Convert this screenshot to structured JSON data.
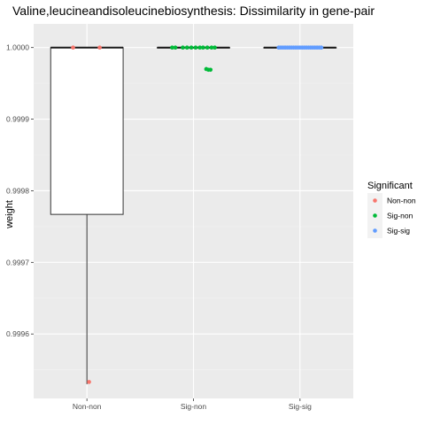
{
  "chart_data": {
    "type": "box",
    "title": "Valine,leucineandisoleucinebiosynthesis: Dissimilarity in gene-pair",
    "xlabel": "",
    "ylabel": "weight",
    "categories": [
      "Non-non",
      "Sig-non",
      "Sig-sig"
    ],
    "ylim": [
      0.99951,
      1.000033
    ],
    "yticks": [
      0.9996,
      0.9997,
      0.9998,
      0.9999,
      1.0
    ],
    "ytick_labels": [
      "0.9996",
      "0.9997",
      "0.9998",
      "0.9999",
      "1.0000"
    ],
    "grid": true,
    "legend": {
      "title": "Significant",
      "placement": "right",
      "entries": [
        {
          "label": "Non-non",
          "color": "#F8766D"
        },
        {
          "label": "Sig-non",
          "color": "#00BA38"
        },
        {
          "label": "Sig-sig",
          "color": "#619CFF"
        }
      ]
    },
    "boxes": [
      {
        "category": "Non-non",
        "lower_whisker": 0.99953,
        "q1": 0.999767,
        "median": 1.0,
        "q3": 1.0,
        "upper_whisker": 1.0
      },
      {
        "category": "Sig-non",
        "lower_whisker": 1.0,
        "q1": 1.0,
        "median": 1.0,
        "q3": 1.0,
        "upper_whisker": 1.0
      },
      {
        "category": "Sig-sig",
        "lower_whisker": 1.0,
        "q1": 1.0,
        "median": 1.0,
        "q3": 1.0,
        "upper_whisker": 1.0
      }
    ],
    "points": [
      {
        "category": "Non-non",
        "jitter": -0.13,
        "y": 1.0
      },
      {
        "category": "Non-non",
        "jitter": 0.12,
        "y": 1.0
      },
      {
        "category": "Non-non",
        "jitter": 0.02,
        "y": 0.999533
      },
      {
        "category": "Sig-non",
        "jitter": -0.2,
        "y": 1.0
      },
      {
        "category": "Sig-non",
        "jitter": -0.17,
        "y": 1.0
      },
      {
        "category": "Sig-non",
        "jitter": -0.1,
        "y": 1.0
      },
      {
        "category": "Sig-non",
        "jitter": -0.06,
        "y": 1.0
      },
      {
        "category": "Sig-non",
        "jitter": -0.02,
        "y": 1.0
      },
      {
        "category": "Sig-non",
        "jitter": 0.02,
        "y": 1.0
      },
      {
        "category": "Sig-non",
        "jitter": 0.06,
        "y": 1.0
      },
      {
        "category": "Sig-non",
        "jitter": 0.09,
        "y": 1.0
      },
      {
        "category": "Sig-non",
        "jitter": 0.13,
        "y": 1.0
      },
      {
        "category": "Sig-non",
        "jitter": 0.17,
        "y": 1.0
      },
      {
        "category": "Sig-non",
        "jitter": 0.2,
        "y": 1.0
      },
      {
        "category": "Sig-non",
        "jitter": 0.12,
        "y": 0.99997
      },
      {
        "category": "Sig-non",
        "jitter": 0.14,
        "y": 0.999969
      },
      {
        "category": "Sig-non",
        "jitter": 0.16,
        "y": 0.999969
      },
      {
        "category": "Sig-sig",
        "jitter": -0.2,
        "y": 1.0
      },
      {
        "category": "Sig-sig",
        "jitter": -0.18,
        "y": 1.0
      },
      {
        "category": "Sig-sig",
        "jitter": -0.16,
        "y": 1.0
      },
      {
        "category": "Sig-sig",
        "jitter": -0.14,
        "y": 1.0
      },
      {
        "category": "Sig-sig",
        "jitter": -0.12,
        "y": 1.0
      },
      {
        "category": "Sig-sig",
        "jitter": -0.1,
        "y": 1.0
      },
      {
        "category": "Sig-sig",
        "jitter": -0.08,
        "y": 1.0
      },
      {
        "category": "Sig-sig",
        "jitter": -0.06,
        "y": 1.0
      },
      {
        "category": "Sig-sig",
        "jitter": -0.04,
        "y": 1.0
      },
      {
        "category": "Sig-sig",
        "jitter": -0.02,
        "y": 1.0
      },
      {
        "category": "Sig-sig",
        "jitter": 0.0,
        "y": 1.0
      },
      {
        "category": "Sig-sig",
        "jitter": 0.02,
        "y": 1.0
      },
      {
        "category": "Sig-sig",
        "jitter": 0.04,
        "y": 1.0
      },
      {
        "category": "Sig-sig",
        "jitter": 0.06,
        "y": 1.0
      },
      {
        "category": "Sig-sig",
        "jitter": 0.08,
        "y": 1.0
      },
      {
        "category": "Sig-sig",
        "jitter": 0.1,
        "y": 1.0
      },
      {
        "category": "Sig-sig",
        "jitter": 0.12,
        "y": 1.0
      },
      {
        "category": "Sig-sig",
        "jitter": 0.14,
        "y": 1.0
      },
      {
        "category": "Sig-sig",
        "jitter": 0.16,
        "y": 1.0
      },
      {
        "category": "Sig-sig",
        "jitter": 0.18,
        "y": 1.0
      },
      {
        "category": "Sig-sig",
        "jitter": 0.2,
        "y": 1.0
      }
    ]
  }
}
